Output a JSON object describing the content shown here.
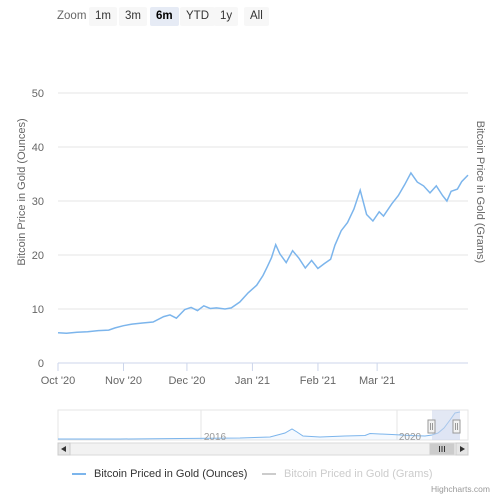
{
  "range_selector": {
    "zoom_label": "Zoom",
    "buttons": [
      {
        "label": "1m",
        "active": false
      },
      {
        "label": "3m",
        "active": false
      },
      {
        "label": "6m",
        "active": true
      },
      {
        "label": "YTD",
        "active": false
      },
      {
        "label": "1y",
        "active": false
      },
      {
        "label": "All",
        "active": false
      }
    ]
  },
  "colors": {
    "series_ounces": "#7cb5ec",
    "series_grams_hidden": "#cccccc",
    "grid": "#e6e6e6",
    "navigator_mask": "#ccd6eb",
    "axis_text": "#666666"
  },
  "navigator": {
    "tick_labels": [
      "2016",
      "2020"
    ]
  },
  "credits": "Highcharts.com",
  "chart_data": {
    "type": "line",
    "title": "",
    "y_axis_left": {
      "title": "Bitcoin Price in Gold (Ounces)",
      "min": 0,
      "max": 50,
      "ticks": [
        0,
        10,
        20,
        30,
        40,
        50
      ]
    },
    "y_axis_right": {
      "title": "Bitcoin Price in Gold (Grams)",
      "ticks": []
    },
    "x_axis": {
      "range": [
        "2020-10-01",
        "2021-04-13"
      ],
      "tick_labels": [
        "Oct '20",
        "Nov '20",
        "Dec '20",
        "Jan '21",
        "Feb '21",
        "Mar '21"
      ],
      "tick_dates": [
        "2020-10-01",
        "2020-11-01",
        "2020-12-01",
        "2021-01-01",
        "2021-02-01",
        "2021-03-01"
      ]
    },
    "grid": true,
    "legend_position": "bottom",
    "series": [
      {
        "name": "Bitcoin Priced in Gold (Ounces)",
        "visible": true,
        "data": [
          [
            "2020-10-01",
            5.6
          ],
          [
            "2020-10-05",
            5.5
          ],
          [
            "2020-10-10",
            5.7
          ],
          [
            "2020-10-15",
            5.8
          ],
          [
            "2020-10-20",
            6.0
          ],
          [
            "2020-10-25",
            6.1
          ],
          [
            "2020-10-28",
            6.5
          ],
          [
            "2020-11-01",
            6.9
          ],
          [
            "2020-11-05",
            7.2
          ],
          [
            "2020-11-10",
            7.4
          ],
          [
            "2020-11-15",
            7.6
          ],
          [
            "2020-11-20",
            8.6
          ],
          [
            "2020-11-23",
            8.9
          ],
          [
            "2020-11-26",
            8.3
          ],
          [
            "2020-11-30",
            9.9
          ],
          [
            "2020-12-03",
            10.3
          ],
          [
            "2020-12-06",
            9.7
          ],
          [
            "2020-12-09",
            10.6
          ],
          [
            "2020-12-12",
            10.1
          ],
          [
            "2020-12-15",
            10.2
          ],
          [
            "2020-12-19",
            10.0
          ],
          [
            "2020-12-22",
            10.2
          ],
          [
            "2020-12-26",
            11.3
          ],
          [
            "2020-12-30",
            13.0
          ],
          [
            "2021-01-03",
            14.4
          ],
          [
            "2021-01-06",
            16.2
          ],
          [
            "2021-01-08",
            17.8
          ],
          [
            "2021-01-10",
            19.5
          ],
          [
            "2021-01-12",
            21.9
          ],
          [
            "2021-01-14",
            20.2
          ],
          [
            "2021-01-17",
            18.6
          ],
          [
            "2021-01-20",
            20.8
          ],
          [
            "2021-01-23",
            19.4
          ],
          [
            "2021-01-26",
            17.6
          ],
          [
            "2021-01-29",
            19.0
          ],
          [
            "2021-02-01",
            17.5
          ],
          [
            "2021-02-04",
            18.4
          ],
          [
            "2021-02-07",
            19.2
          ],
          [
            "2021-02-09",
            21.8
          ],
          [
            "2021-02-12",
            24.5
          ],
          [
            "2021-02-15",
            26.0
          ],
          [
            "2021-02-18",
            28.5
          ],
          [
            "2021-02-21",
            32.0
          ],
          [
            "2021-02-24",
            27.5
          ],
          [
            "2021-02-27",
            26.3
          ],
          [
            "2021-03-02",
            28.0
          ],
          [
            "2021-03-04",
            27.2
          ],
          [
            "2021-03-08",
            29.5
          ],
          [
            "2021-03-11",
            31.0
          ],
          [
            "2021-03-14",
            33.0
          ],
          [
            "2021-03-17",
            35.2
          ],
          [
            "2021-03-20",
            33.5
          ],
          [
            "2021-03-23",
            32.8
          ],
          [
            "2021-03-26",
            31.5
          ],
          [
            "2021-03-29",
            32.8
          ],
          [
            "2021-04-01",
            31.0
          ],
          [
            "2021-04-03",
            30.0
          ],
          [
            "2021-04-05",
            31.8
          ],
          [
            "2021-04-08",
            32.2
          ],
          [
            "2021-04-10",
            33.6
          ],
          [
            "2021-04-13",
            34.8
          ]
        ]
      },
      {
        "name": "Bitcoin Priced in Gold (Grams)",
        "visible": false,
        "data": []
      }
    ]
  }
}
